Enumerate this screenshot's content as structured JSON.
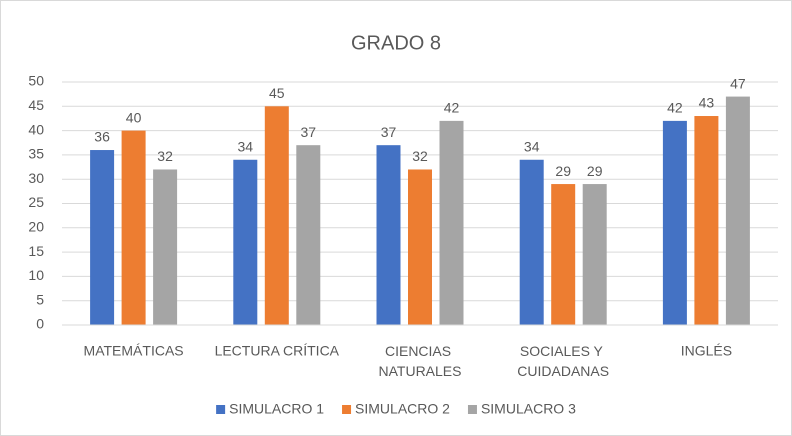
{
  "chart_data": {
    "type": "bar",
    "title": "GRADO 8",
    "categories": [
      "MATEMÁTICAS",
      "LECTURA CRÍTICA",
      "CIENCIAS NATURALES",
      "SOCIALES Y CUIDADANAS",
      "INGLÉS"
    ],
    "series": [
      {
        "name": "SIMULACRO 1",
        "color": "#4472c4",
        "values": [
          36,
          34,
          37,
          34,
          42
        ]
      },
      {
        "name": "SIMULACRO 2",
        "color": "#ed7d31",
        "values": [
          40,
          45,
          32,
          29,
          43
        ]
      },
      {
        "name": "SIMULACRO 3",
        "color": "#a5a5a5",
        "values": [
          32,
          37,
          42,
          29,
          47
        ]
      }
    ],
    "ylim": [
      0,
      50
    ],
    "yticks": [
      0,
      5,
      10,
      15,
      20,
      25,
      30,
      35,
      40,
      45,
      50
    ],
    "grid": true,
    "legend": "bottom"
  }
}
